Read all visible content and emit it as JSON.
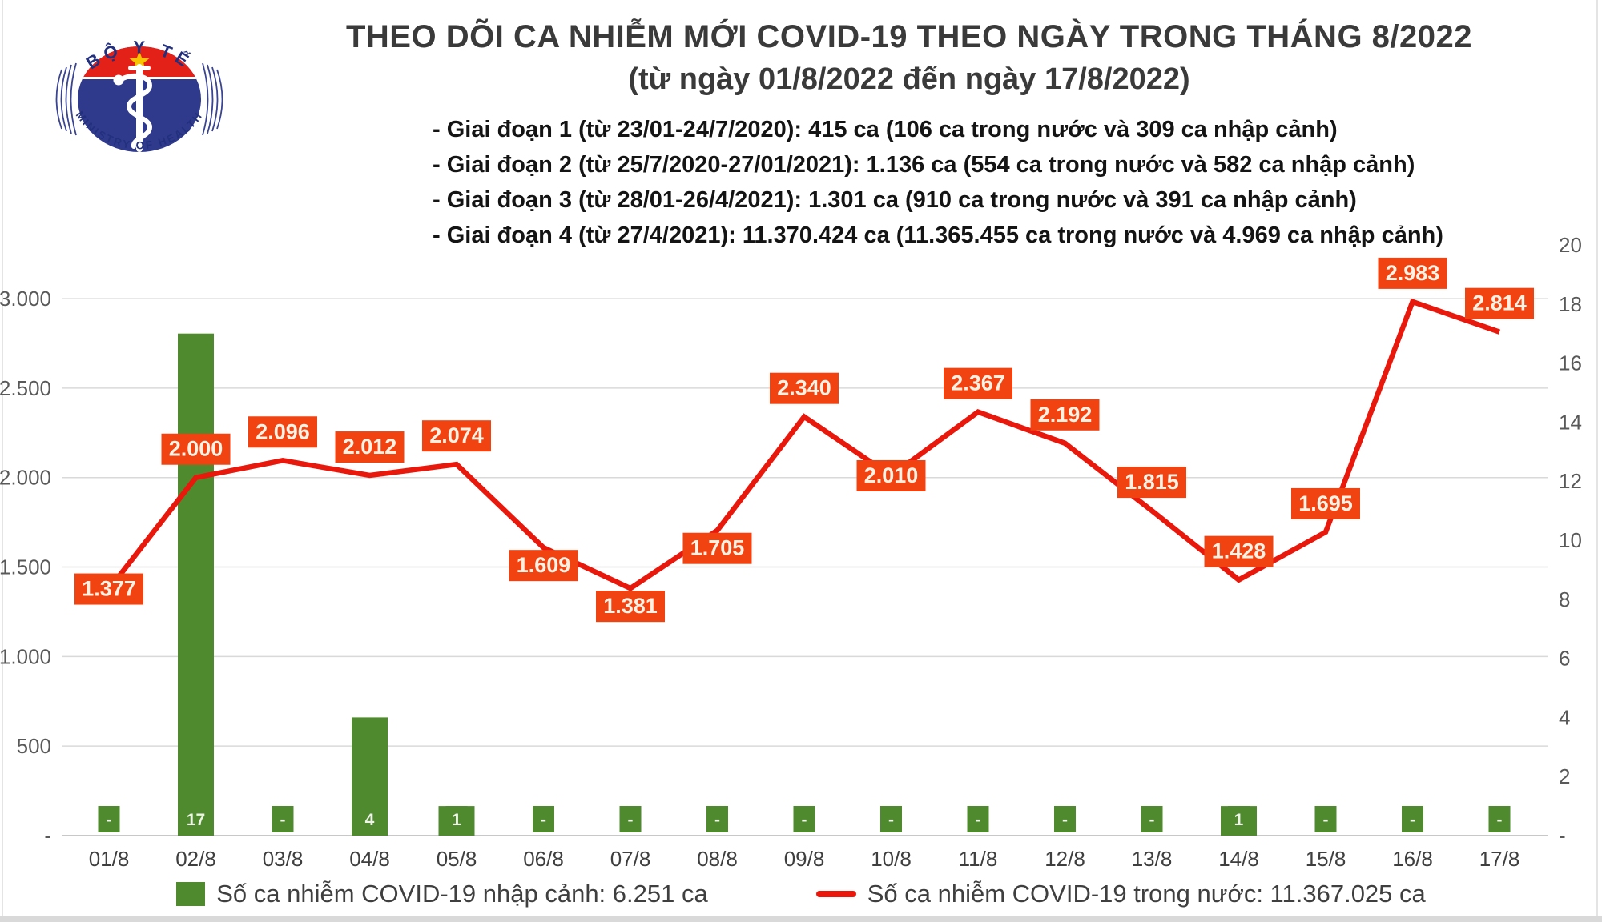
{
  "logo": {
    "top_text": "BỘ Y TẾ",
    "bottom_text": "MINISTRY OF HEALTH",
    "navy": "#23307e",
    "red": "#e32119",
    "star_yellow": "#f8c300"
  },
  "header": {
    "title": "THEO DÕI CA NHIỄM MỚI COVID-19 THEO NGÀY TRONG THÁNG 8/2022",
    "subtitle": "(từ ngày 01/8/2022 đến ngày 17/8/2022)",
    "notes": [
      "- Giai đoạn 1 (từ 23/01-24/7/2020): 415 ca (106 ca trong nước và 309 ca nhập cảnh)",
      "- Giai đoạn 2 (từ 25/7/2020-27/01/2021): 1.136 ca (554 ca trong nước và 582 ca nhập cảnh)",
      "- Giai đoạn 3 (từ 28/01-26/4/2021): 1.301 ca (910 ca trong nước và 391 ca nhập cảnh)",
      "- Giai đoạn 4 (từ 27/4/2021): 11.370.424 ca (11.365.455 ca trong nước và 4.969 ca nhập cảnh)"
    ]
  },
  "chart_data": {
    "type": "combo bar+line",
    "categories": [
      "01/8",
      "02/8",
      "03/8",
      "04/8",
      "05/8",
      "06/8",
      "07/8",
      "08/8",
      "09/8",
      "10/8",
      "11/8",
      "12/8",
      "13/8",
      "14/8",
      "15/8",
      "16/8",
      "17/8"
    ],
    "series": [
      {
        "name": "Số ca nhiễm COVID-19 nhập cảnh",
        "chart": "bar",
        "axis": "right",
        "color": "#4f8a2e",
        "values": [
          0,
          17,
          0,
          4,
          1,
          0,
          0,
          0,
          0,
          0,
          0,
          0,
          0,
          1,
          0,
          0,
          0
        ],
        "point_labels": [
          "-",
          "17",
          "-",
          "4",
          "1",
          "-",
          "-",
          "-",
          "-",
          "-",
          "-",
          "-",
          "-",
          "1",
          "-",
          "-",
          "-"
        ]
      },
      {
        "name": "Số ca nhiễm COVID-19 trong nước",
        "chart": "line",
        "axis": "left",
        "color": "#e8190c",
        "values": [
          1377,
          2000,
          2096,
          2012,
          2074,
          1609,
          1381,
          1705,
          2340,
          2010,
          2367,
          2192,
          1815,
          1428,
          1695,
          2983,
          2814
        ],
        "point_labels": [
          "1.377",
          "2.000",
          "2.096",
          "2.012",
          "2.074",
          "1.609",
          "1.381",
          "1.705",
          "2.340",
          "2.010",
          "2.367",
          "2.192",
          "1.815",
          "1.428",
          "1.695",
          "2.983",
          "2.814"
        ],
        "label_pos": [
          "on",
          "above",
          "above",
          "above",
          "above",
          "below",
          "below",
          "below",
          "above",
          "on",
          "above",
          "above",
          "above",
          "above",
          "above",
          "above",
          "above"
        ],
        "label_box_color": "#f04311",
        "label_text_color": "#fdf2e4"
      }
    ],
    "left_axis": {
      "max": 3300,
      "ticks": [
        {
          "v": 0,
          "label": "-"
        },
        {
          "v": 500,
          "label": "500"
        },
        {
          "v": 1000,
          "label": "1.000"
        },
        {
          "v": 1500,
          "label": "1.500"
        },
        {
          "v": 2000,
          "label": "2.000"
        },
        {
          "v": 2500,
          "label": "2.500"
        },
        {
          "v": 3000,
          "label": "3.000"
        }
      ]
    },
    "right_axis": {
      "max": 20,
      "ticks": [
        {
          "v": 0,
          "label": "-"
        },
        {
          "v": 2,
          "label": "2"
        },
        {
          "v": 4,
          "label": "4"
        },
        {
          "v": 6,
          "label": "6"
        },
        {
          "v": 8,
          "label": "8"
        },
        {
          "v": 10,
          "label": "10"
        },
        {
          "v": 12,
          "label": "12"
        },
        {
          "v": 14,
          "label": "14"
        },
        {
          "v": 16,
          "label": "16"
        },
        {
          "v": 18,
          "label": "18"
        },
        {
          "v": 20,
          "label": "20"
        }
      ]
    },
    "grid": "horizontal, light gray, legend bottom",
    "legend": [
      {
        "marker": "square",
        "color": "#4f8a2e",
        "label": "Số ca nhiễm COVID-19 nhập cảnh: 6.251 ca"
      },
      {
        "marker": "line",
        "color": "#e8190c",
        "label": "Số ca nhiễm COVID-19 trong nước: 11.367.025 ca"
      }
    ]
  }
}
